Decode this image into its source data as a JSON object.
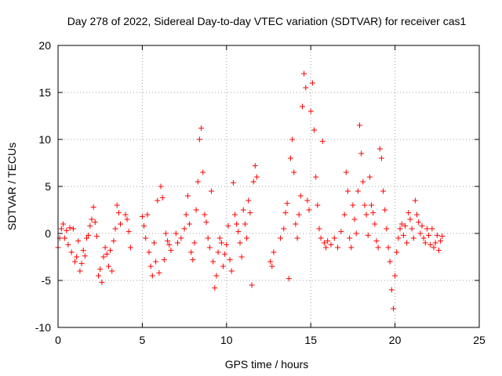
{
  "chart_data": {
    "type": "scatter",
    "title": "Day 278 of 2022, Sidereal Day-to-day VTEC variation (SDTVAR) for receiver cas1",
    "xlabel": "GPS time / hours",
    "ylabel": "SDTVAR / TECUs",
    "xlim": [
      0,
      25
    ],
    "ylim": [
      -10,
      20
    ],
    "xticks": [
      0,
      5,
      10,
      15,
      20,
      25
    ],
    "yticks": [
      -10,
      -5,
      0,
      5,
      10,
      15,
      20
    ],
    "xtick_labels": [
      "0",
      "5",
      "10",
      "15",
      "20",
      "25"
    ],
    "ytick_labels": [
      "-10",
      "-5",
      "0",
      "5",
      "10",
      "15",
      "20"
    ],
    "grid": true,
    "marker": "+",
    "color": "#ff0000",
    "series": [
      {
        "name": "SDTVAR",
        "points": [
          [
            0.0,
            -1.5
          ],
          [
            0.1,
            -0.5
          ],
          [
            0.2,
            0.5
          ],
          [
            0.3,
            1.0
          ],
          [
            0.4,
            -0.5
          ],
          [
            0.5,
            0.3
          ],
          [
            0.6,
            -1.2
          ],
          [
            0.7,
            0.6
          ],
          [
            0.8,
            -2.0
          ],
          [
            0.9,
            0.5
          ],
          [
            1.0,
            -3.0
          ],
          [
            1.1,
            -2.5
          ],
          [
            1.2,
            -0.8
          ],
          [
            1.3,
            -4.0
          ],
          [
            1.4,
            -3.2
          ],
          [
            1.5,
            -1.8
          ],
          [
            1.6,
            -2.4
          ],
          [
            1.7,
            -0.5
          ],
          [
            1.8,
            -0.2
          ],
          [
            1.9,
            0.8
          ],
          [
            2.0,
            1.5
          ],
          [
            2.1,
            2.8
          ],
          [
            2.2,
            1.2
          ],
          [
            2.3,
            -0.3
          ],
          [
            2.4,
            -4.5
          ],
          [
            2.5,
            -3.8
          ],
          [
            2.6,
            -5.2
          ],
          [
            2.7,
            -2.5
          ],
          [
            2.8,
            -1.5
          ],
          [
            2.9,
            -2.2
          ],
          [
            3.0,
            -3.5
          ],
          [
            3.1,
            -1.8
          ],
          [
            3.2,
            -4.0
          ],
          [
            3.3,
            -0.8
          ],
          [
            3.4,
            0.5
          ],
          [
            3.5,
            3.0
          ],
          [
            3.6,
            2.2
          ],
          [
            3.7,
            1.0
          ],
          [
            4.0,
            2.0
          ],
          [
            4.1,
            1.5
          ],
          [
            4.2,
            0.2
          ],
          [
            4.3,
            -1.5
          ],
          [
            5.0,
            1.8
          ],
          [
            5.1,
            0.8
          ],
          [
            5.2,
            -0.5
          ],
          [
            5.3,
            2.0
          ],
          [
            5.4,
            -2.0
          ],
          [
            5.5,
            -3.5
          ],
          [
            5.6,
            -4.5
          ],
          [
            5.7,
            -1.0
          ],
          [
            5.8,
            -3.0
          ],
          [
            5.9,
            3.5
          ],
          [
            6.0,
            -4.2
          ],
          [
            6.1,
            5.0
          ],
          [
            6.2,
            3.8
          ],
          [
            6.3,
            -2.8
          ],
          [
            6.4,
            0.0
          ],
          [
            6.5,
            -0.8
          ],
          [
            6.6,
            -1.2
          ],
          [
            6.7,
            -1.8
          ],
          [
            7.0,
            0.0
          ],
          [
            7.1,
            -1.0
          ],
          [
            7.3,
            -0.5
          ],
          [
            7.5,
            0.5
          ],
          [
            7.6,
            2.0
          ],
          [
            7.7,
            4.0
          ],
          [
            7.8,
            1.0
          ],
          [
            7.9,
            -2.0
          ],
          [
            8.0,
            -2.8
          ],
          [
            8.1,
            -1.0
          ],
          [
            8.2,
            2.5
          ],
          [
            8.3,
            5.5
          ],
          [
            8.4,
            10.0
          ],
          [
            8.5,
            11.2
          ],
          [
            8.6,
            6.5
          ],
          [
            8.7,
            2.0
          ],
          [
            8.8,
            1.2
          ],
          [
            8.9,
            -0.5
          ],
          [
            9.0,
            -1.5
          ],
          [
            9.1,
            4.5
          ],
          [
            9.2,
            -3.0
          ],
          [
            9.3,
            -5.8
          ],
          [
            9.4,
            -4.5
          ],
          [
            9.5,
            -2.0
          ],
          [
            9.6,
            -0.5
          ],
          [
            9.7,
            -1.0
          ],
          [
            9.8,
            -3.5
          ],
          [
            9.9,
            -2.2
          ],
          [
            10.0,
            -1.2
          ],
          [
            10.1,
            0.8
          ],
          [
            10.2,
            -2.8
          ],
          [
            10.3,
            -4.0
          ],
          [
            10.4,
            5.4
          ],
          [
            10.5,
            2.0
          ],
          [
            10.6,
            1.0
          ],
          [
            10.7,
            0.2
          ],
          [
            10.8,
            -1.0
          ],
          [
            10.9,
            -2.5
          ],
          [
            11.0,
            2.5
          ],
          [
            11.1,
            1.0
          ],
          [
            11.2,
            -0.5
          ],
          [
            11.3,
            3.5
          ],
          [
            11.4,
            2.2
          ],
          [
            11.5,
            -5.5
          ],
          [
            11.6,
            5.5
          ],
          [
            11.7,
            7.2
          ],
          [
            11.8,
            6.0
          ],
          [
            12.6,
            -3.0
          ],
          [
            12.7,
            -3.5
          ],
          [
            12.8,
            -2.0
          ],
          [
            13.2,
            -0.5
          ],
          [
            13.4,
            0.5
          ],
          [
            13.5,
            2.2
          ],
          [
            13.6,
            3.2
          ],
          [
            13.7,
            -4.8
          ],
          [
            13.8,
            8.0
          ],
          [
            13.9,
            10.0
          ],
          [
            14.0,
            6.5
          ],
          [
            14.1,
            1.0
          ],
          [
            14.2,
            -0.5
          ],
          [
            14.3,
            2.0
          ],
          [
            14.4,
            4.0
          ],
          [
            14.5,
            13.5
          ],
          [
            14.6,
            17.0
          ],
          [
            14.7,
            15.5
          ],
          [
            14.8,
            3.5
          ],
          [
            14.9,
            2.5
          ],
          [
            15.0,
            13.0
          ],
          [
            15.1,
            16.0
          ],
          [
            15.2,
            11.0
          ],
          [
            15.3,
            6.0
          ],
          [
            15.4,
            3.0
          ],
          [
            15.5,
            0.5
          ],
          [
            15.6,
            -0.5
          ],
          [
            15.7,
            9.8
          ],
          [
            15.8,
            -1.0
          ],
          [
            15.9,
            -1.5
          ],
          [
            16.0,
            -0.8
          ],
          [
            16.2,
            -1.2
          ],
          [
            16.4,
            -0.5
          ],
          [
            16.6,
            -1.5
          ],
          [
            16.8,
            0.2
          ],
          [
            17.0,
            2.0
          ],
          [
            17.1,
            6.5
          ],
          [
            17.2,
            4.5
          ],
          [
            17.3,
            -0.5
          ],
          [
            17.4,
            -1.5
          ],
          [
            17.5,
            3.0
          ],
          [
            17.6,
            1.5
          ],
          [
            17.7,
            0.0
          ],
          [
            17.8,
            4.5
          ],
          [
            17.9,
            11.5
          ],
          [
            18.0,
            8.5
          ],
          [
            18.1,
            5.5
          ],
          [
            18.2,
            3.0
          ],
          [
            18.3,
            2.0
          ],
          [
            18.4,
            -0.2
          ],
          [
            18.5,
            6.0
          ],
          [
            18.6,
            3.0
          ],
          [
            18.7,
            2.2
          ],
          [
            18.8,
            1.0
          ],
          [
            18.9,
            -0.8
          ],
          [
            19.0,
            -1.5
          ],
          [
            19.1,
            9.0
          ],
          [
            19.2,
            8.0
          ],
          [
            19.3,
            4.5
          ],
          [
            19.4,
            2.5
          ],
          [
            19.5,
            0.5
          ],
          [
            19.6,
            -1.5
          ],
          [
            19.7,
            -3.0
          ],
          [
            19.8,
            -6.0
          ],
          [
            19.9,
            -8.0
          ],
          [
            20.0,
            -4.5
          ],
          [
            20.1,
            -2.0
          ],
          [
            20.2,
            -0.5
          ],
          [
            20.3,
            0.5
          ],
          [
            20.4,
            1.0
          ],
          [
            20.5,
            -0.2
          ],
          [
            20.6,
            0.8
          ],
          [
            20.7,
            -1.0
          ],
          [
            20.8,
            2.2
          ],
          [
            20.9,
            1.5
          ],
          [
            21.0,
            0.5
          ],
          [
            21.1,
            -0.5
          ],
          [
            21.2,
            3.5
          ],
          [
            21.3,
            2.0
          ],
          [
            21.4,
            1.2
          ],
          [
            21.5,
            0.0
          ],
          [
            21.6,
            0.8
          ],
          [
            21.7,
            -0.5
          ],
          [
            21.8,
            -1.0
          ],
          [
            21.9,
            0.5
          ],
          [
            22.0,
            -0.2
          ],
          [
            22.1,
            -1.2
          ],
          [
            22.2,
            0.5
          ],
          [
            22.3,
            -1.5
          ],
          [
            22.4,
            -1.0
          ],
          [
            22.5,
            -0.2
          ],
          [
            22.6,
            -1.8
          ],
          [
            22.7,
            -0.8
          ],
          [
            22.8,
            -0.3
          ]
        ]
      }
    ]
  }
}
